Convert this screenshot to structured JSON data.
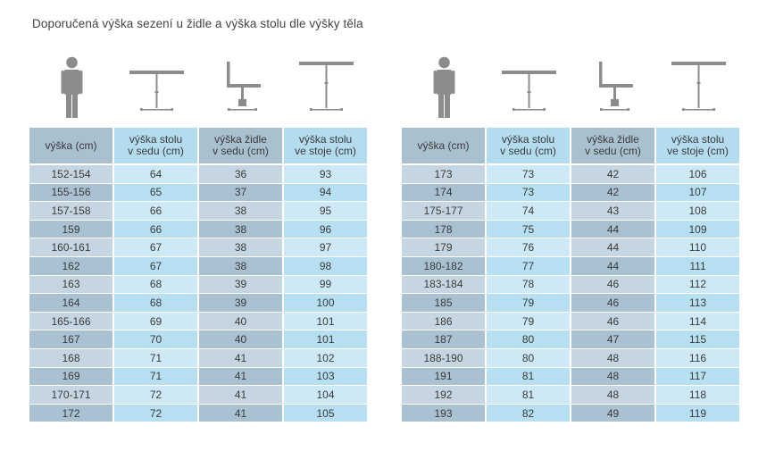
{
  "title": "Doporučená výška sezení u židle a výška stolu dle výšky těla",
  "icons": [
    "person-icon",
    "sitting-desk-icon",
    "chair-icon",
    "standing-desk-icon"
  ],
  "headers": [
    [
      "výška (cm)"
    ],
    [
      "výška stolu",
      "v sedu (cm)"
    ],
    [
      "výška židle",
      "v sedu (cm)"
    ],
    [
      "výška stolu",
      "ve stoje (cm)"
    ]
  ],
  "tables": [
    {
      "rows": [
        [
          "152-154",
          "64",
          "36",
          "93"
        ],
        [
          "155-156",
          "65",
          "37",
          "94"
        ],
        [
          "157-158",
          "66",
          "38",
          "95"
        ],
        [
          "159",
          "66",
          "38",
          "96"
        ],
        [
          "160-161",
          "67",
          "38",
          "97"
        ],
        [
          "162",
          "67",
          "38",
          "98"
        ],
        [
          "163",
          "68",
          "39",
          "99"
        ],
        [
          "164",
          "68",
          "39",
          "100"
        ],
        [
          "165-166",
          "69",
          "40",
          "101"
        ],
        [
          "167",
          "70",
          "40",
          "101"
        ],
        [
          "168",
          "71",
          "41",
          "102"
        ],
        [
          "169",
          "71",
          "41",
          "103"
        ],
        [
          "170-171",
          "72",
          "41",
          "104"
        ],
        [
          "172",
          "72",
          "41",
          "105"
        ]
      ]
    },
    {
      "rows": [
        [
          "173",
          "73",
          "42",
          "106"
        ],
        [
          "174",
          "73",
          "42",
          "107"
        ],
        [
          "175-177",
          "74",
          "43",
          "108"
        ],
        [
          "178",
          "75",
          "44",
          "109"
        ],
        [
          "179",
          "76",
          "44",
          "110"
        ],
        [
          "180-182",
          "77",
          "44",
          "111"
        ],
        [
          "183-184",
          "78",
          "46",
          "112"
        ],
        [
          "185",
          "79",
          "46",
          "113"
        ],
        [
          "186",
          "79",
          "46",
          "114"
        ],
        [
          "187",
          "80",
          "47",
          "115"
        ],
        [
          "188-190",
          "80",
          "48",
          "116"
        ],
        [
          "191",
          "81",
          "48",
          "117"
        ],
        [
          "192",
          "81",
          "48",
          "118"
        ],
        [
          "193",
          "82",
          "49",
          "119"
        ]
      ]
    }
  ]
}
